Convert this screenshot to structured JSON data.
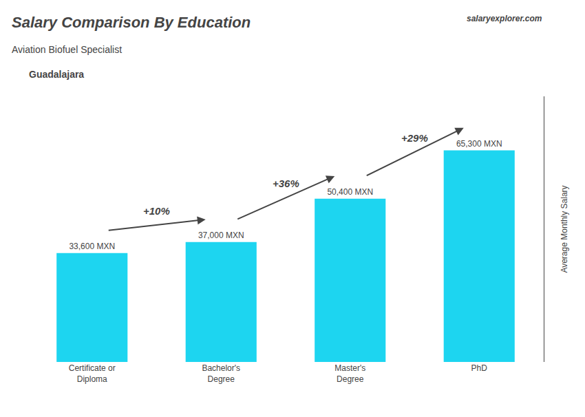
{
  "chart_data": {
    "type": "bar",
    "title": "Salary Comparison By Education",
    "subtitle": "Aviation Biofuel Specialist",
    "ylabel": "Average Monthly Salary",
    "categories": [
      "Certificate or\nDiploma",
      "Bachelor's\nDegree",
      "Master's\nDegree",
      "PhD"
    ],
    "values": [
      33600,
      37000,
      50400,
      65300
    ],
    "value_labels": [
      "33,600 MXN",
      "37,000 MXN",
      "50,400 MXN",
      "65,300 MXN"
    ],
    "data_labels": true,
    "color": "#1dd5f0",
    "ylim": [
      0,
      82000
    ],
    "yticks": [],
    "tick_labels": "x",
    "grid": false,
    "annotations": [
      {
        "text": "Guadalajara"
      },
      {
        "text": "salaryexplorer.com"
      },
      {
        "text": "+10%",
        "from": 0,
        "to": 1
      },
      {
        "text": "+36%",
        "from": 1,
        "to": 2
      },
      {
        "text": "+29%",
        "from": 2,
        "to": 3
      }
    ]
  }
}
